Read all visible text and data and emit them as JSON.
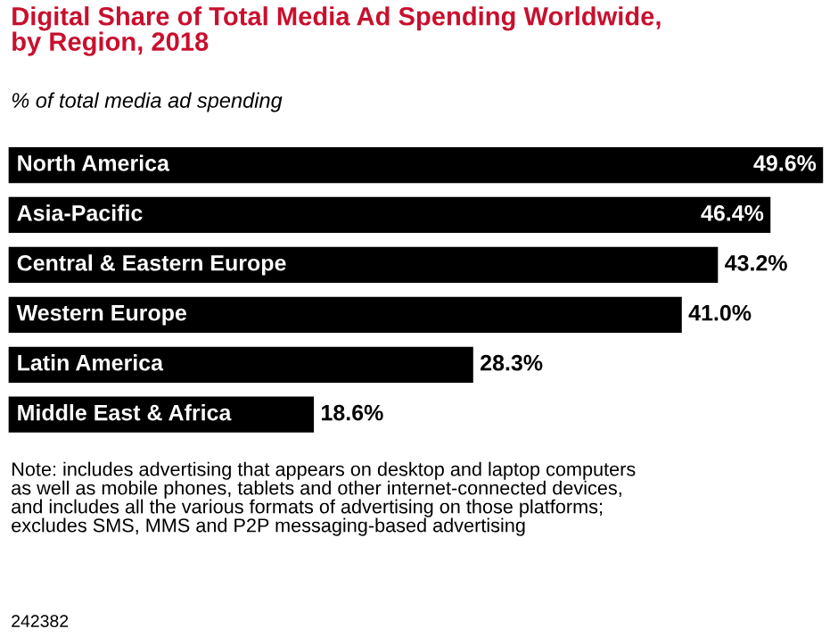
{
  "chart_data": {
    "type": "bar",
    "orientation": "horizontal",
    "title": "Digital Share of Total Media Ad Spending Worldwide,\nby Region, 2018",
    "subtitle": "% of total media ad spending",
    "categories": [
      "North America",
      "Asia-Pacific",
      "Central & Eastern Europe",
      "Western Europe",
      "Latin America",
      "Middle East & Africa"
    ],
    "values": [
      49.6,
      46.4,
      43.2,
      41.0,
      28.3,
      18.6
    ],
    "value_labels": [
      "49.6%",
      "46.4%",
      "43.2%",
      "41.0%",
      "28.3%",
      "18.6%"
    ],
    "color": "#000000",
    "xlim": [
      0,
      50
    ],
    "annotations": [
      "Note: includes advertising that appears on desktop and laptop computers\nas well as mobile phones, tablets and other internet-connected devices,\nand includes all the various formats of advertising on those platforms;\nexcludes SMS, MMS and P2P messaging-based advertising",
      "242382"
    ]
  }
}
